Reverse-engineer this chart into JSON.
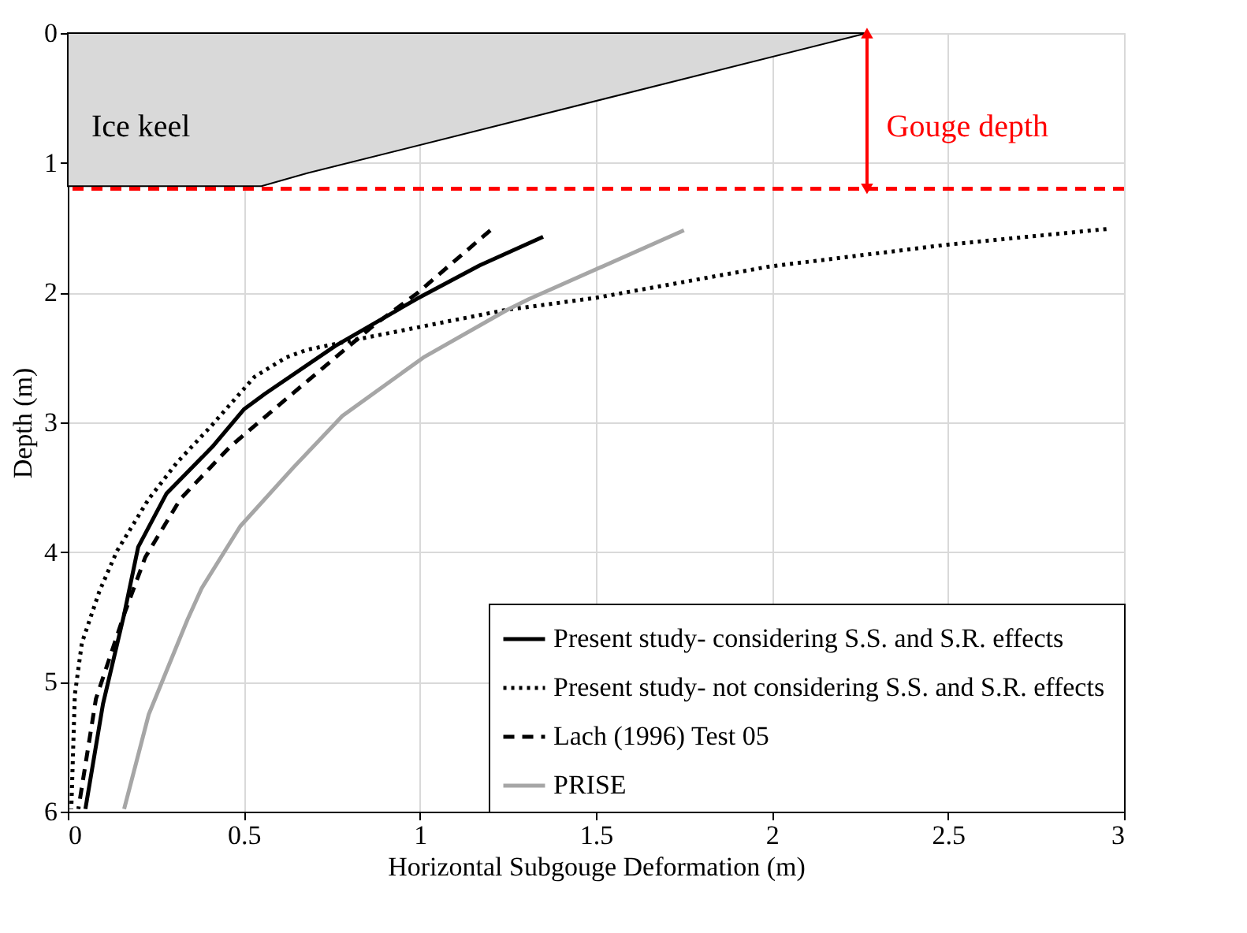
{
  "chart_data": {
    "type": "line",
    "xlabel": "Horizontal Subgouge Deformation (m)",
    "ylabel": "Depth (m)",
    "xlim": [
      0,
      3
    ],
    "xticks": [
      0,
      0.5,
      1,
      1.5,
      2,
      2.5,
      3
    ],
    "ylim": [
      6,
      0
    ],
    "yticks": [
      0,
      1,
      2,
      3,
      4,
      5,
      6
    ],
    "grid": true,
    "legend": "bottom right",
    "series": [
      {
        "name": "Present study- considering S.S. and S.R. effects",
        "color": "#000000",
        "line_style": "solid",
        "x": [
          1.35,
          1.17,
          0.99,
          0.76,
          0.56,
          0.5,
          0.41,
          0.28,
          0.2,
          0.16,
          0.1,
          0.05
        ],
        "values": [
          1.57,
          1.79,
          2.05,
          2.41,
          2.78,
          2.9,
          3.19,
          3.55,
          3.96,
          4.48,
          5.17,
          5.98
        ]
      },
      {
        "name": "Present study- not considering  S.S. and S.R. effects",
        "color": "#000000",
        "line_style": "dotted",
        "x": [
          2.95,
          2.5,
          1.99,
          1.5,
          1.31,
          1.25,
          0.86,
          0.68,
          0.62,
          0.53,
          0.41,
          0.31,
          0.23,
          0.14,
          0.09,
          0.04,
          0.02,
          0.01
        ],
        "values": [
          1.51,
          1.63,
          1.8,
          2.04,
          2.11,
          2.13,
          2.34,
          2.44,
          2.5,
          2.65,
          3.02,
          3.31,
          3.59,
          3.99,
          4.3,
          4.7,
          5.1,
          5.98
        ]
      },
      {
        "name": "Lach (1996) Test 05",
        "color": "#000000",
        "line_style": "dashed",
        "x": [
          1.2,
          0.99,
          0.87,
          0.76,
          0.62,
          0.46,
          0.32,
          0.22,
          0.16,
          0.08,
          0.03
        ],
        "values": [
          1.52,
          2.01,
          2.25,
          2.5,
          2.82,
          3.19,
          3.59,
          4.04,
          4.48,
          5.13,
          5.98
        ]
      },
      {
        "name": "PRISE",
        "color": "#a6a6a6",
        "line_style": "solid",
        "x": [
          1.75,
          1.31,
          1.25,
          1.01,
          0.78,
          0.64,
          0.49,
          0.38,
          0.34,
          0.23,
          0.16
        ],
        "values": [
          1.52,
          2.05,
          2.13,
          2.5,
          2.95,
          3.35,
          3.8,
          4.28,
          4.52,
          5.25,
          5.98
        ]
      },
      {
        "type": "area",
        "color": "#d9d9d9",
        "x": [
          0,
          0.55,
          0.68,
          2.27
        ],
        "values": [
          1.18,
          1.18,
          1.08,
          0
        ]
      },
      {
        "type": "line",
        "color": "#ff0000",
        "line_style": "solid",
        "marker": "triangle",
        "x": [
          2.27,
          2.27
        ],
        "values": [
          0,
          1.2
        ]
      }
    ],
    "ref_lines": [
      {
        "axis": "y",
        "value": 1.2,
        "color": "#ff0000",
        "line_style": "dashed"
      }
    ],
    "annotations": [
      "Ice keel",
      "Gouge depth"
    ]
  }
}
